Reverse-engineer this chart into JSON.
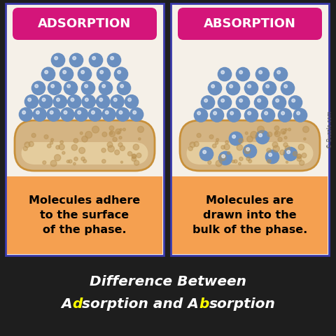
{
  "title_line1": "Difference Between",
  "title_line2_parts": [
    [
      "A",
      "white"
    ],
    [
      "d",
      "yellow"
    ],
    [
      "sorption and A",
      "white"
    ],
    [
      "b",
      "yellow"
    ],
    [
      "sorption",
      "white"
    ]
  ],
  "panel_bg": "#F5F0E8",
  "panel_border": "#3A3AAA",
  "header_bg": "#D4157A",
  "header_text_adsorption": "ADSORPTION",
  "header_text_absorption": "ABSORPTION",
  "header_text_color": "white",
  "orange_bg": "#F5A050",
  "bottom_bg": "#1E1E1E",
  "clay_color_light": "#D4B483",
  "clay_color_dark": "#B89050",
  "clay_border": "#C8903A",
  "clay_inner": "#F0DDB0",
  "ball_color": "#6A8FC0",
  "ball_edge": "#3A5A8A",
  "adsorption_text": "Molecules adhere\nto the surface\nof the phase.",
  "absorption_text": "Molecules are\ndrawn into the\nbulk of the phase.",
  "watermark": "© Buzzle.com"
}
